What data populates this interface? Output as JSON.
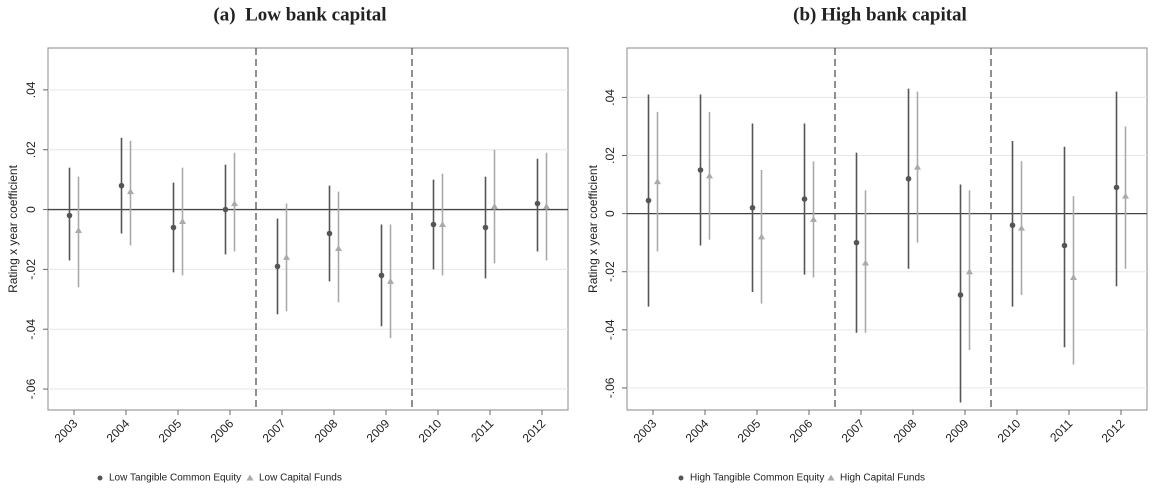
{
  "chart_data": [
    {
      "type": "dotplot",
      "title": "(a)  Low bank capital",
      "ylabel": "Rating x year coefficient",
      "categories": [
        "2003",
        "2004",
        "2005",
        "2006",
        "2007",
        "2008",
        "2009",
        "2010",
        "2011",
        "2012"
      ],
      "ylim": [
        -0.067,
        0.054
      ],
      "yticks": [
        {
          "value": -0.06,
          "label": "-.06"
        },
        {
          "value": -0.04,
          "label": "-.04"
        },
        {
          "value": -0.02,
          "label": "-.02"
        },
        0,
        {
          "value": 0.02,
          "label": ".02"
        },
        {
          "value": 0.04,
          "label": ".04"
        }
      ],
      "grid": true,
      "series": [
        {
          "name": "Low Tangible Common Equity",
          "color": "#555555",
          "marker": "circle",
          "values": [
            -0.002,
            0.008,
            -0.006,
            0,
            -0.019,
            -0.008,
            -0.022,
            -0.005,
            -0.006,
            0.002
          ],
          "lower": [
            -0.017,
            -0.008,
            -0.021,
            -0.015,
            -0.035,
            -0.024,
            -0.039,
            -0.02,
            -0.023,
            -0.014
          ],
          "upper": [
            0.014,
            0.024,
            0.009,
            0.015,
            -0.003,
            0.008,
            -0.005,
            0.01,
            0.011,
            0.017
          ]
        },
        {
          "name": "Low Capital Funds",
          "color": "#aaaaaa",
          "marker": "triangle",
          "values": [
            -0.007,
            0.006,
            -0.004,
            0.002,
            -0.016,
            -0.013,
            -0.024,
            -0.005,
            0.001,
            0.001
          ],
          "lower": [
            -0.026,
            -0.012,
            -0.022,
            -0.014,
            -0.034,
            -0.031,
            -0.043,
            -0.022,
            -0.018,
            -0.017
          ],
          "upper": [
            0.011,
            0.023,
            0.014,
            0.019,
            0.002,
            0.006,
            -0.005,
            0.012,
            0.02,
            0.019
          ]
        }
      ]
    },
    {
      "type": "dotplot",
      "title": "(b) High bank capital",
      "ylabel": "Rating x year coefficient",
      "categories": [
        "2003",
        "2004",
        "2005",
        "2006",
        "2007",
        "2008",
        "2009",
        "2010",
        "2011",
        "2012"
      ],
      "ylim": [
        -0.0676,
        0.057
      ],
      "yticks": [
        {
          "value": -0.06,
          "label": "-.06"
        },
        {
          "value": -0.04,
          "label": "-.04"
        },
        {
          "value": -0.02,
          "label": "-.02"
        },
        0,
        {
          "value": 0.02,
          "label": ".02"
        },
        {
          "value": 0.04,
          "label": ".04"
        }
      ],
      "grid": true,
      "series": [
        {
          "name": "High Tangible Common Equity",
          "color": "#555555",
          "marker": "circle",
          "values": [
            0.0045,
            0.015,
            0.002,
            0.005,
            -0.01,
            0.012,
            -0.028,
            -0.004,
            -0.011,
            0.009
          ],
          "lower": [
            -0.032,
            -0.011,
            -0.027,
            -0.021,
            -0.041,
            -0.019,
            -0.065,
            -0.032,
            -0.046,
            -0.025
          ],
          "upper": [
            0.041,
            0.041,
            0.031,
            0.031,
            0.021,
            0.043,
            0.01,
            0.025,
            0.023,
            0.042
          ]
        },
        {
          "name": "High Capital Funds",
          "color": "#aaaaaa",
          "marker": "triangle",
          "values": [
            0.011,
            0.013,
            -0.008,
            -0.002,
            -0.017,
            0.016,
            -0.02,
            -0.005,
            -0.022,
            0.006
          ],
          "lower": [
            -0.013,
            -0.009,
            -0.031,
            -0.022,
            -0.041,
            -0.01,
            -0.047,
            -0.028,
            -0.052,
            -0.019
          ],
          "upper": [
            0.035,
            0.035,
            0.015,
            0.018,
            0.008,
            0.042,
            0.008,
            0.018,
            0.006,
            0.03
          ]
        }
      ]
    }
  ]
}
